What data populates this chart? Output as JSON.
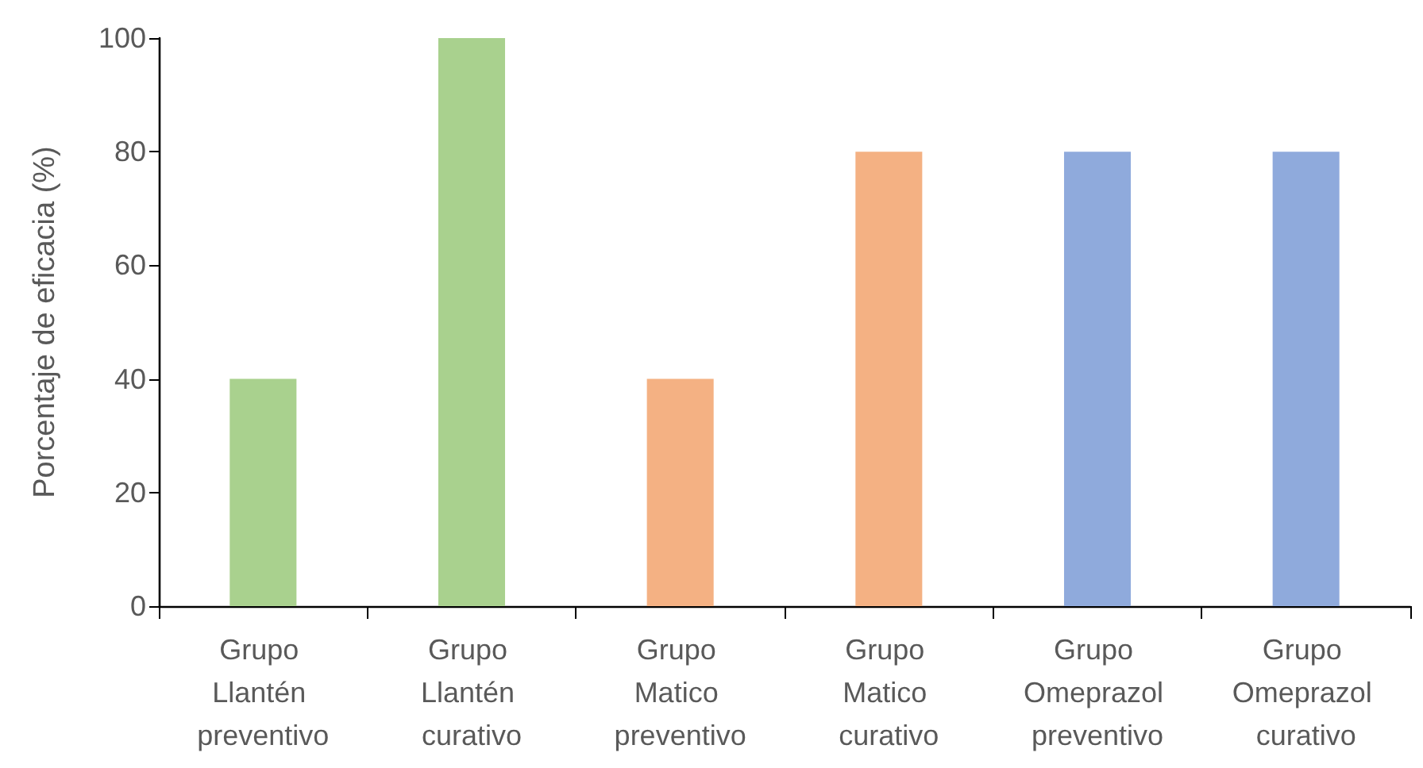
{
  "chart_data": {
    "type": "bar",
    "ylabel": "Porcentaje de eficacia (%)",
    "categories": [
      "Grupo Llantén preventivo",
      "Grupo Llantén curativo",
      "Grupo Matico preventivo",
      "Grupo Matico curativo",
      "Grupo Omeprazol preventivo",
      "Grupo Omeprazol curativo"
    ],
    "values": [
      40,
      100,
      40,
      80,
      80,
      80
    ],
    "colors": [
      "#a9d18e",
      "#a9d18e",
      "#f4b183",
      "#f4b183",
      "#8faadc",
      "#8faadc"
    ],
    "ylim": [
      0,
      100
    ],
    "yticks": [
      0,
      20,
      40,
      60,
      80,
      100
    ]
  }
}
